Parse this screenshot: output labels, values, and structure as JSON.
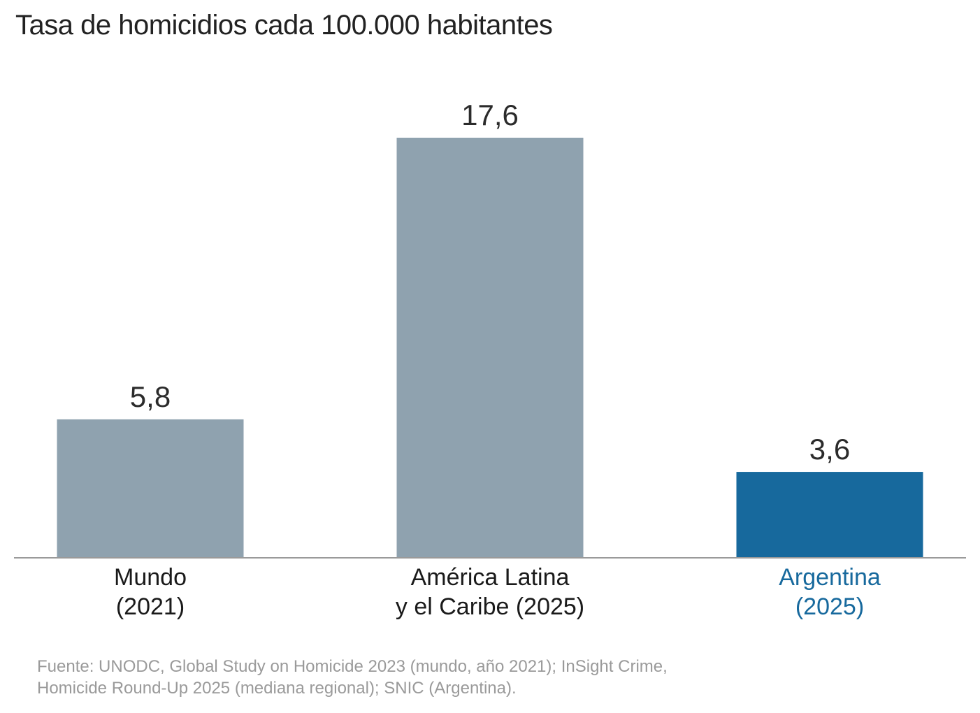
{
  "title": "Tasa de homicidios cada 100.000 habitantes",
  "source": {
    "line1": "Fuente: UNODC, Global Study on Homicide 2023 (mundo, año 2021); InSight Crime,",
    "line2": "Homicide Round-Up 2025 (mediana regional); SNIC (Argentina)."
  },
  "colors": {
    "bar_default": "#8fa2af",
    "bar_highlight": "#17699d",
    "label_default": "#1a1a1a",
    "label_highlight": "#17699d",
    "value_text": "#2b2b2b",
    "axis": "#9a9a9a"
  },
  "chart_data": {
    "type": "bar",
    "categories": [
      [
        "Mundo",
        "(2021)"
      ],
      [
        "América Latina",
        "y el Caribe (2025)"
      ],
      [
        "Argentina",
        "(2025)"
      ]
    ],
    "values": [
      5.8,
      17.6,
      3.6
    ],
    "value_labels": [
      "5,8",
      "17,6",
      "3,6"
    ],
    "highlight": [
      false,
      false,
      true
    ],
    "title": "Tasa de homicidios cada 100.000 habitantes",
    "xlabel": "",
    "ylabel": "",
    "ylim": [
      0,
      17.6
    ],
    "grid": false,
    "legend": "none"
  }
}
